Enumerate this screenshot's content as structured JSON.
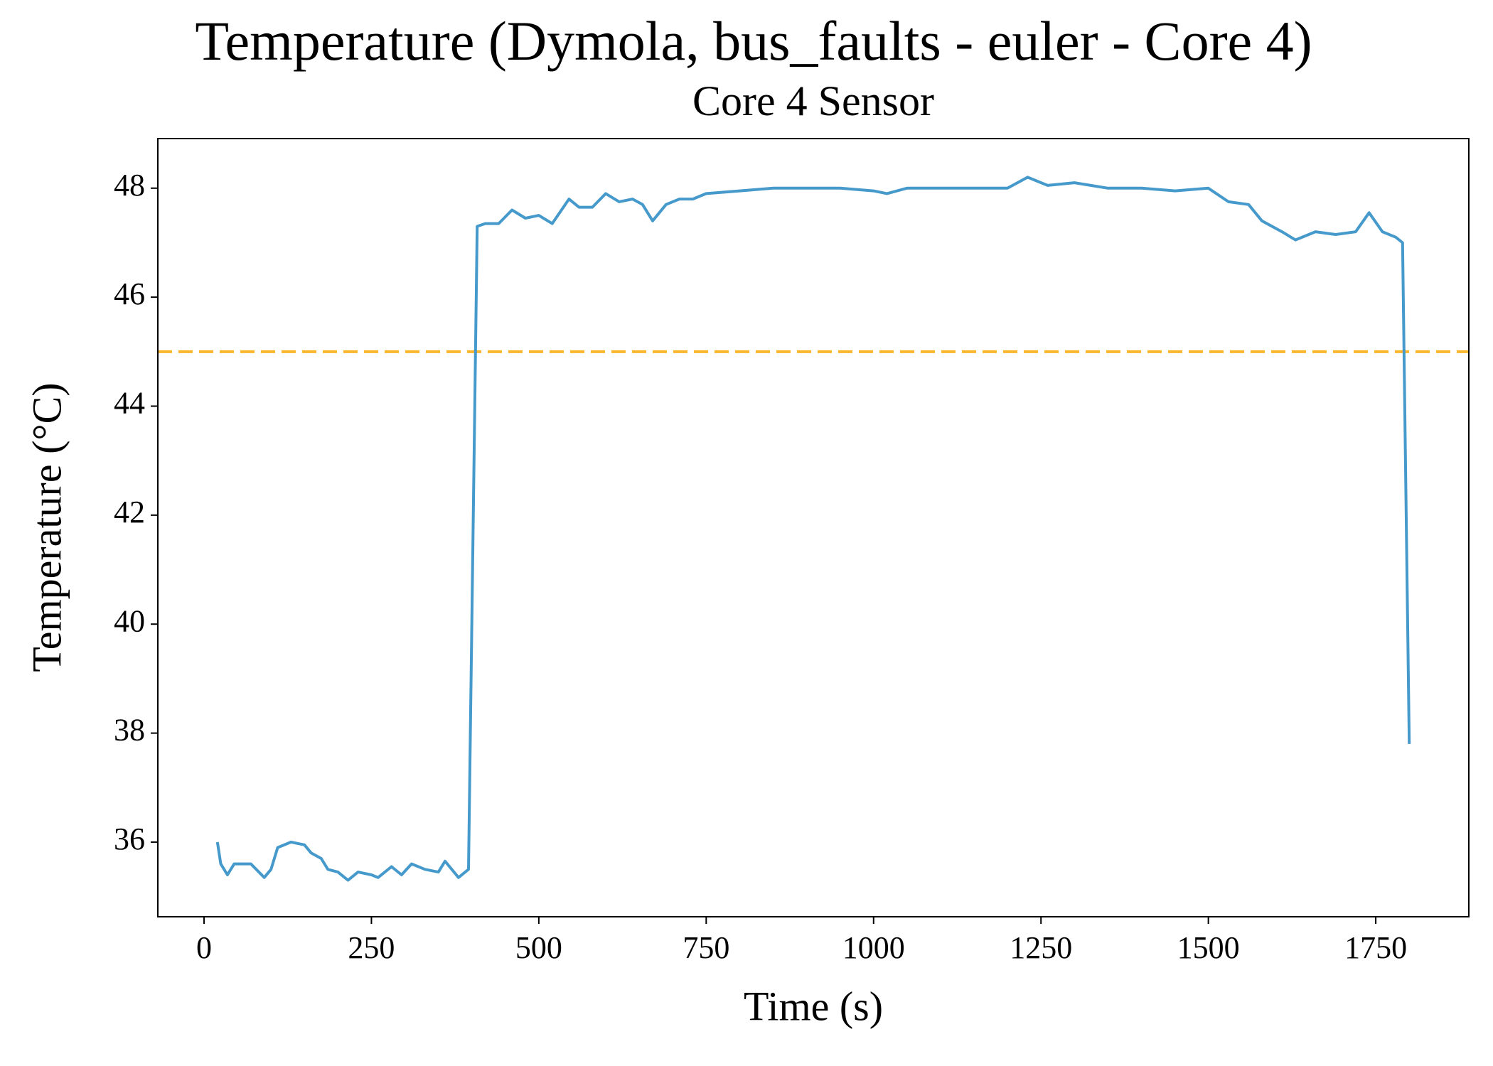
{
  "chart_data": {
    "type": "line",
    "title": "Temperature (Dymola, bus_faults - euler - Core 4)",
    "subtitle": "Core 4 Sensor",
    "x_label": "Time (s)",
    "y_label": "Temperature (°C)",
    "x": [
      20,
      25,
      35,
      45,
      55,
      70,
      90,
      100,
      110,
      130,
      150,
      160,
      175,
      185,
      200,
      215,
      230,
      250,
      260,
      280,
      295,
      310,
      330,
      350,
      360,
      380,
      395,
      408,
      420,
      440,
      460,
      480,
      500,
      520,
      545,
      560,
      580,
      600,
      620,
      640,
      655,
      670,
      690,
      710,
      730,
      750,
      800,
      850,
      900,
      950,
      1000,
      1020,
      1050,
      1100,
      1150,
      1200,
      1230,
      1260,
      1300,
      1350,
      1400,
      1450,
      1500,
      1530,
      1560,
      1580,
      1610,
      1630,
      1660,
      1690,
      1720,
      1740,
      1760,
      1780,
      1790,
      1800
    ],
    "series": [
      {
        "name": "Core 4 Sensor",
        "color": "#4699cb",
        "values": [
          36.0,
          35.6,
          35.4,
          35.6,
          35.6,
          35.6,
          35.35,
          35.5,
          35.9,
          36.0,
          35.95,
          35.8,
          35.7,
          35.5,
          35.45,
          35.3,
          35.45,
          35.4,
          35.35,
          35.55,
          35.4,
          35.6,
          35.5,
          35.45,
          35.65,
          35.35,
          35.5,
          47.3,
          47.35,
          47.35,
          47.6,
          47.45,
          47.5,
          47.35,
          47.8,
          47.65,
          47.65,
          47.9,
          47.75,
          47.8,
          47.7,
          47.4,
          47.7,
          47.8,
          47.8,
          47.9,
          47.95,
          48.0,
          48.0,
          48.0,
          47.95,
          47.9,
          48.0,
          48.0,
          48.0,
          48.0,
          48.2,
          48.05,
          48.1,
          48.0,
          48.0,
          47.95,
          48.0,
          47.75,
          47.7,
          47.4,
          47.2,
          47.05,
          47.2,
          47.15,
          47.2,
          47.55,
          47.2,
          47.1,
          47.0,
          37.8
        ]
      }
    ],
    "hlines": [
      {
        "value": 45,
        "color": "#fbb62c"
      }
    ],
    "xlim": [
      -69,
      1889
    ],
    "xticks": [
      0,
      250,
      500,
      750,
      1000,
      1250,
      1500,
      1750
    ],
    "ylim": [
      34.63,
      48.91
    ],
    "yticks": [
      36,
      38,
      40,
      42,
      44,
      46,
      48
    ],
    "grid": false
  }
}
